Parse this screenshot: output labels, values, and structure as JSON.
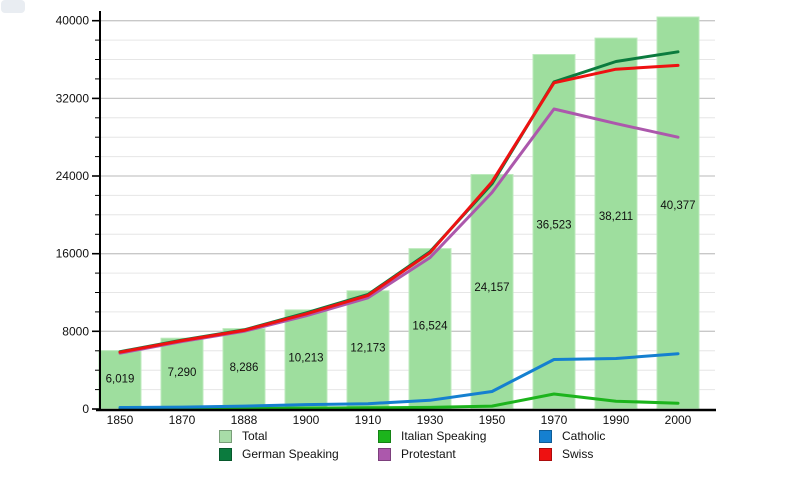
{
  "colors": {
    "total_fill": "#9EDE9E",
    "total_border": "#BCEABC",
    "total_swatch": "#A8DCA8",
    "german_speaking": "#0B7B3E",
    "italian_speaking": "#1CB41C",
    "protestant": "#AC58AC",
    "catholic": "#1580D0",
    "swiss": "#EE1111",
    "grid_minor": "#E6E6E6",
    "grid_major": "#C8C8C8",
    "axis": "#000000",
    "text": "#111111"
  },
  "legend": {
    "total": "Total",
    "german_speaking": "German Speaking",
    "italian_speaking": "Italian Speaking",
    "protestant": "Protestant",
    "catholic": "Catholic",
    "swiss": "Swiss"
  },
  "chart_data": {
    "type": "bar",
    "title": "",
    "categories": [
      "1850",
      "1870",
      "1888",
      "1900",
      "1910",
      "1930",
      "1950",
      "1970",
      "1990",
      "2000"
    ],
    "y_axis": {
      "min": 0,
      "max": 40000,
      "major_step": 8000,
      "minor_step": 2000,
      "tick_labels": [
        "0",
        "8000",
        "16000",
        "24000",
        "32000",
        "40000"
      ]
    },
    "grid": "horizontal",
    "legend_position": "bottom",
    "bar_series": {
      "name": "Total",
      "color_key": "total_fill",
      "values": [
        6019,
        7290,
        8286,
        10213,
        12173,
        16524,
        24157,
        36523,
        38211,
        40377
      ],
      "value_labels": [
        "6,019",
        "7,290",
        "8,286",
        "10,213",
        "12,173",
        "16,524",
        "24,157",
        "36,523",
        "38,211",
        "40,377"
      ]
    },
    "line_series": [
      {
        "name": "Italian Speaking",
        "color_key": "italian_speaking",
        "values": [
          30,
          50,
          70,
          90,
          120,
          160,
          300,
          1550,
          800,
          600
        ]
      },
      {
        "name": "Catholic",
        "color_key": "catholic",
        "values": [
          150,
          200,
          300,
          450,
          550,
          900,
          1800,
          5100,
          5200,
          5700
        ]
      },
      {
        "name": "Protestant",
        "color_key": "protestant",
        "values": [
          5750,
          6950,
          8000,
          9600,
          11450,
          15600,
          22300,
          30900,
          29400,
          28000
        ]
      },
      {
        "name": "German Speaking",
        "color_key": "german_speaking",
        "values": [
          5900,
          7100,
          8150,
          9900,
          11800,
          16200,
          23200,
          33700,
          35800,
          36800
        ]
      },
      {
        "name": "Swiss",
        "color_key": "swiss",
        "values": [
          5850,
          7050,
          8100,
          9800,
          11700,
          16100,
          23400,
          33600,
          35000,
          35400
        ]
      }
    ]
  }
}
